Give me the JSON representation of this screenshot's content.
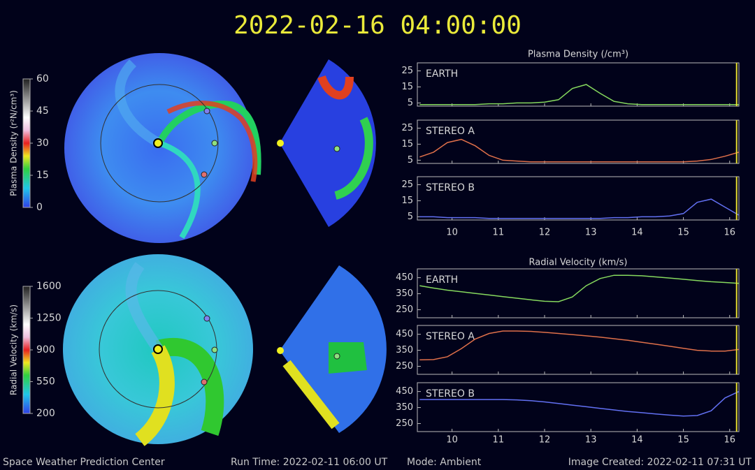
{
  "header": {
    "title": "2022-02-16 04:00:00"
  },
  "colorbars": [
    {
      "label": "Plasma Density (r²N/cm³)",
      "lim": [
        0,
        60
      ],
      "ticks": [
        0,
        15,
        30,
        45,
        60
      ]
    },
    {
      "label": "Radial Velocity (km/s)",
      "lim": [
        200,
        1600
      ],
      "ticks": [
        200,
        550,
        900,
        1250,
        1600
      ]
    }
  ],
  "chart_data": [
    {
      "type": "line",
      "title": "Plasma Density (/cm³)",
      "x": [
        9.3,
        9.6,
        9.9,
        10.2,
        10.5,
        10.8,
        11.1,
        11.4,
        11.7,
        12.0,
        12.3,
        12.6,
        12.9,
        13.2,
        13.5,
        13.8,
        14.1,
        14.4,
        14.7,
        15.0,
        15.3,
        15.6,
        15.9,
        16.2
      ],
      "xlim": [
        9.25,
        16.2
      ],
      "xticks": [
        10,
        11,
        12,
        13,
        14,
        15,
        16
      ],
      "ylim": [
        3,
        30
      ],
      "yticks": [
        5,
        15,
        25
      ],
      "now": 16.15,
      "series": [
        {
          "name": "EARTH",
          "color": "#86d95e",
          "values": [
            4,
            4,
            4,
            4,
            4,
            4.5,
            4.5,
            5,
            5,
            5.5,
            7,
            14,
            16.5,
            11,
            6,
            4.5,
            4,
            4,
            4,
            4,
            4,
            4,
            4,
            4
          ]
        },
        {
          "name": "STEREO A",
          "color": "#e0704a",
          "values": [
            7,
            10,
            16,
            18,
            14,
            8,
            5,
            4.5,
            4,
            4,
            4,
            4,
            4,
            4,
            4,
            4,
            4,
            4,
            4,
            4,
            4.5,
            5.5,
            7.5,
            10
          ]
        },
        {
          "name": "STEREO B",
          "color": "#6270f2",
          "values": [
            5,
            5,
            4.5,
            4.5,
            4.5,
            4,
            4,
            4,
            4,
            4,
            4,
            4,
            4,
            4,
            4.5,
            4.5,
            5,
            5,
            5.5,
            7,
            14,
            16,
            11,
            6
          ]
        }
      ]
    },
    {
      "type": "line",
      "title": "Radial Velocity (km/s)",
      "x": [
        9.3,
        9.6,
        9.9,
        10.2,
        10.5,
        10.8,
        11.1,
        11.4,
        11.7,
        12.0,
        12.3,
        12.6,
        12.9,
        13.2,
        13.5,
        13.8,
        14.1,
        14.4,
        14.7,
        15.0,
        15.3,
        15.6,
        15.9,
        16.2
      ],
      "xlim": [
        9.25,
        16.2
      ],
      "xticks": [
        10,
        11,
        12,
        13,
        14,
        15,
        16
      ],
      "ylim": [
        200,
        505
      ],
      "yticks": [
        250,
        350,
        450
      ],
      "now": 16.15,
      "series": [
        {
          "name": "EARTH",
          "color": "#86d95e",
          "values": [
            400,
            385,
            372,
            362,
            352,
            342,
            332,
            322,
            312,
            303,
            300,
            330,
            400,
            445,
            465,
            465,
            462,
            455,
            448,
            440,
            432,
            425,
            420,
            415
          ]
        },
        {
          "name": "STEREO A",
          "color": "#e0704a",
          "values": [
            290,
            292,
            310,
            360,
            420,
            455,
            470,
            470,
            468,
            462,
            455,
            448,
            440,
            432,
            422,
            412,
            400,
            388,
            375,
            362,
            350,
            345,
            345,
            355
          ]
        },
        {
          "name": "STEREO B",
          "color": "#6270f2",
          "values": [
            400,
            400,
            400,
            400,
            400,
            400,
            400,
            398,
            393,
            385,
            375,
            365,
            355,
            345,
            335,
            325,
            318,
            310,
            303,
            297,
            300,
            330,
            410,
            450
          ]
        }
      ]
    }
  ],
  "footer": {
    "center": "Space Weather Prediction Center",
    "run_time": "Run Time: 2022-02-11 06:00 UT",
    "mode": "Mode: Ambient",
    "created": "Image Created: 2022-02-11 07:31 UT"
  }
}
